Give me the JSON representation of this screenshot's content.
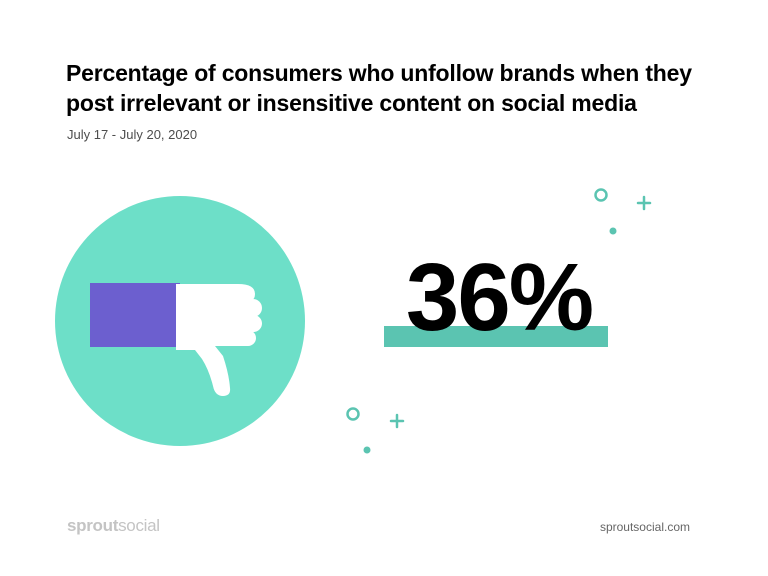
{
  "title": {
    "line1": "Percentage of consumers who unfollow brands when they",
    "line2": "post irrelevant or insensitive content on social media"
  },
  "date_range": "July 17 - July 20, 2020",
  "stat": {
    "value": "36%"
  },
  "icons": {
    "main": "thumbs-down-icon",
    "decorations": [
      "ring-icon",
      "plus-icon",
      "dot-icon"
    ]
  },
  "footer": {
    "brand_bold": "sprout",
    "brand_light": "social",
    "website": "sproutsocial.com"
  },
  "colors": {
    "circle": "#6ddfc8",
    "sleeve": "#6c5fcf",
    "hand": "#ffffff",
    "underline": "#5bc4b1",
    "decoration": "#5bc4b1",
    "text": "#000000",
    "date_text": "#4d4d4d",
    "brand_text": "#c4c4c4"
  }
}
